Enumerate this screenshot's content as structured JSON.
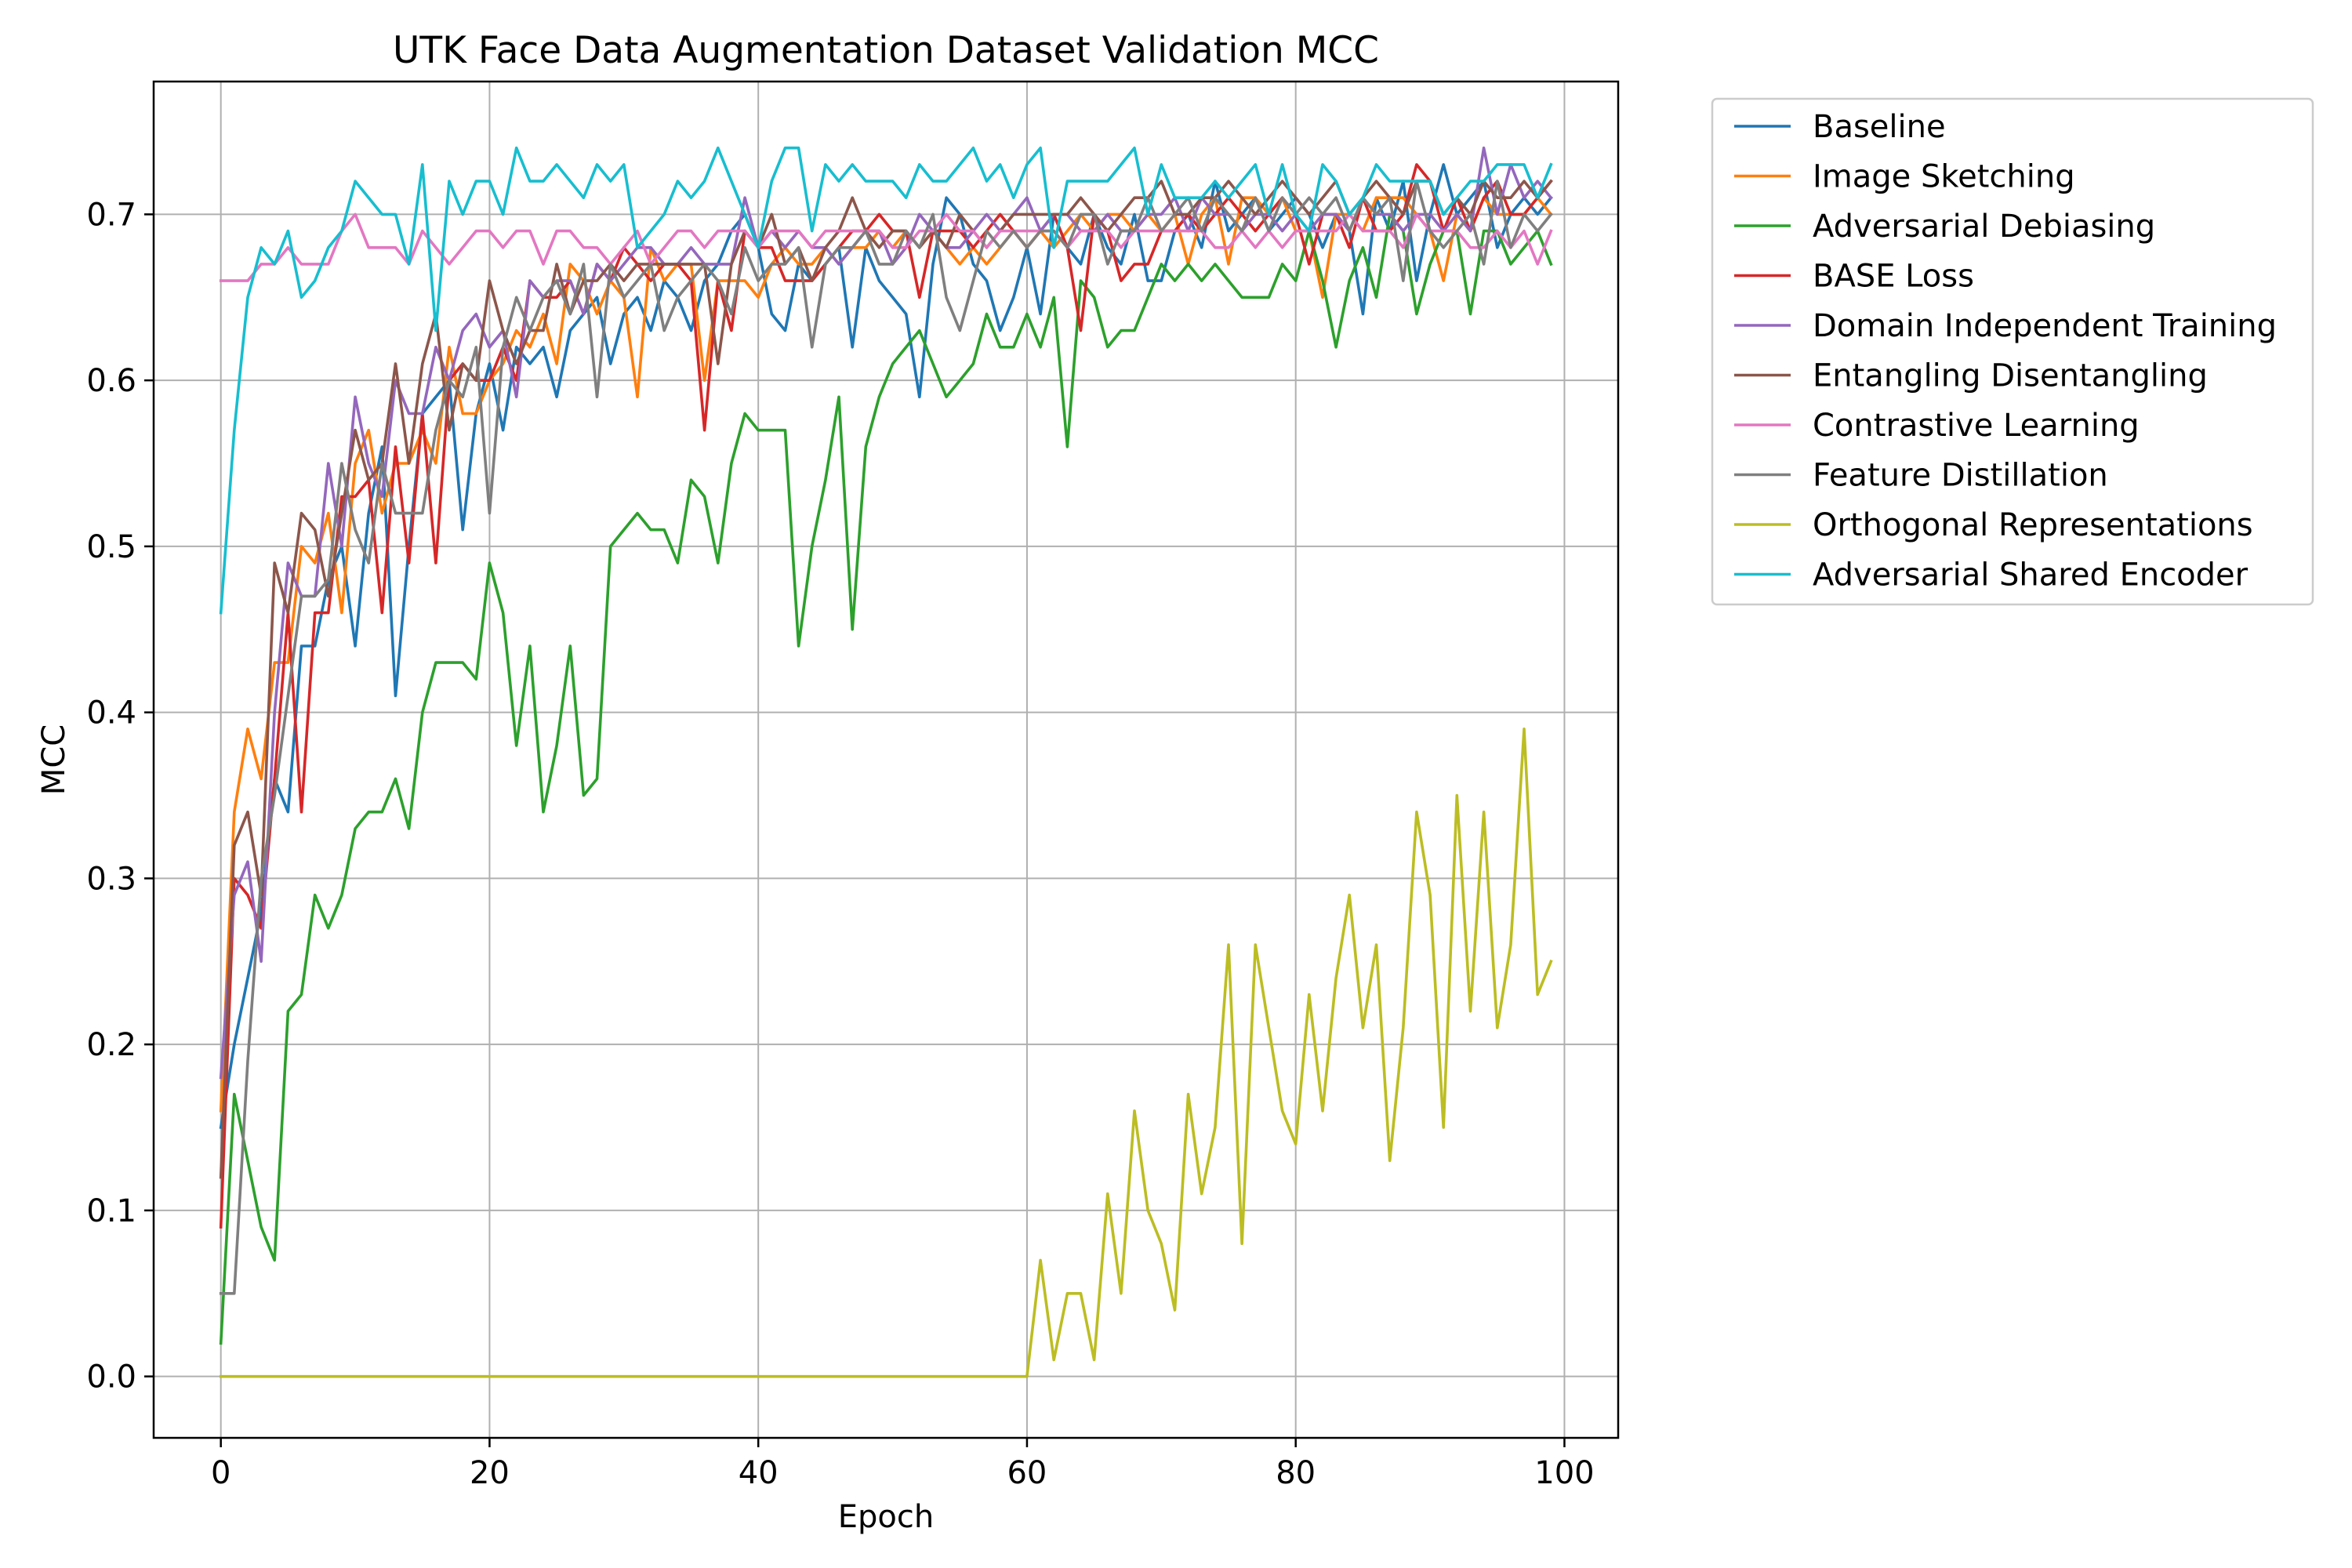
{
  "chart_data": {
    "type": "line",
    "title": "UTK Face Data Augmentation Dataset Validation MCC",
    "xlabel": "Epoch",
    "ylabel": "MCC",
    "xlim": [
      -5,
      104
    ],
    "ylim": [
      -0.037,
      0.78
    ],
    "xticks": [
      0,
      20,
      40,
      60,
      80,
      100
    ],
    "yticks": [
      0.0,
      0.1,
      0.2,
      0.3,
      0.4,
      0.5,
      0.6,
      0.7
    ],
    "ytick_labels": [
      "0.0",
      "0.1",
      "0.2",
      "0.3",
      "0.4",
      "0.5",
      "0.6",
      "0.7"
    ],
    "grid": true,
    "legend_position": "outside-upper-right",
    "epochs_start": 0,
    "epochs_end": 99,
    "series": [
      {
        "name": "Baseline",
        "color": "#1f77b4",
        "values": [
          0.15,
          0.2,
          0.24,
          0.28,
          0.36,
          0.34,
          0.44,
          0.44,
          0.48,
          0.5,
          0.44,
          0.52,
          0.56,
          0.41,
          0.5,
          0.58,
          0.59,
          0.6,
          0.51,
          0.58,
          0.61,
          0.57,
          0.62,
          0.61,
          0.62,
          0.59,
          0.63,
          0.64,
          0.65,
          0.61,
          0.64,
          0.65,
          0.63,
          0.66,
          0.65,
          0.63,
          0.66,
          0.67,
          0.69,
          0.7,
          0.68,
          0.64,
          0.63,
          0.67,
          0.66,
          0.67,
          0.68,
          0.62,
          0.68,
          0.66,
          0.65,
          0.64,
          0.59,
          0.67,
          0.71,
          0.7,
          0.67,
          0.66,
          0.63,
          0.65,
          0.68,
          0.64,
          0.7,
          0.68,
          0.67,
          0.7,
          0.68,
          0.67,
          0.7,
          0.66,
          0.66,
          0.69,
          0.7,
          0.68,
          0.72,
          0.69,
          0.7,
          0.71,
          0.69,
          0.7,
          0.71,
          0.7,
          0.68,
          0.7,
          0.69,
          0.64,
          0.71,
          0.69,
          0.72,
          0.66,
          0.7,
          0.73,
          0.7,
          0.71,
          0.72,
          0.68,
          0.7,
          0.71,
          0.7,
          0.71
        ]
      },
      {
        "name": "Image Sketching",
        "color": "#ff7f0e",
        "values": [
          0.16,
          0.34,
          0.39,
          0.36,
          0.43,
          0.43,
          0.5,
          0.49,
          0.52,
          0.46,
          0.55,
          0.57,
          0.52,
          0.55,
          0.55,
          0.57,
          0.55,
          0.62,
          0.58,
          0.58,
          0.6,
          0.61,
          0.63,
          0.62,
          0.64,
          0.61,
          0.67,
          0.66,
          0.64,
          0.66,
          0.65,
          0.59,
          0.68,
          0.66,
          0.67,
          0.67,
          0.6,
          0.66,
          0.66,
          0.66,
          0.65,
          0.67,
          0.68,
          0.67,
          0.67,
          0.68,
          0.67,
          0.68,
          0.68,
          0.69,
          0.68,
          0.69,
          0.68,
          0.69,
          0.68,
          0.67,
          0.68,
          0.67,
          0.68,
          0.69,
          0.68,
          0.69,
          0.68,
          0.69,
          0.7,
          0.69,
          0.7,
          0.7,
          0.69,
          0.7,
          0.69,
          0.7,
          0.67,
          0.7,
          0.71,
          0.67,
          0.71,
          0.71,
          0.7,
          0.71,
          0.69,
          0.69,
          0.65,
          0.7,
          0.7,
          0.69,
          0.71,
          0.71,
          0.71,
          0.7,
          0.69,
          0.66,
          0.7,
          0.69,
          0.71,
          0.7,
          0.7,
          0.7,
          0.71,
          0.7
        ]
      },
      {
        "name": "Adversarial Debiasing",
        "color": "#2ca02c",
        "values": [
          0.02,
          0.17,
          0.13,
          0.09,
          0.07,
          0.22,
          0.23,
          0.29,
          0.27,
          0.29,
          0.33,
          0.34,
          0.34,
          0.36,
          0.33,
          0.4,
          0.43,
          0.43,
          0.43,
          0.42,
          0.49,
          0.46,
          0.38,
          0.44,
          0.34,
          0.38,
          0.44,
          0.35,
          0.36,
          0.5,
          0.51,
          0.52,
          0.51,
          0.51,
          0.49,
          0.54,
          0.53,
          0.49,
          0.55,
          0.58,
          0.57,
          0.57,
          0.57,
          0.44,
          0.5,
          0.54,
          0.59,
          0.45,
          0.56,
          0.59,
          0.61,
          0.62,
          0.63,
          0.61,
          0.59,
          0.6,
          0.61,
          0.64,
          0.62,
          0.62,
          0.64,
          0.62,
          0.65,
          0.56,
          0.66,
          0.65,
          0.62,
          0.63,
          0.63,
          0.65,
          0.67,
          0.66,
          0.67,
          0.66,
          0.67,
          0.66,
          0.65,
          0.65,
          0.65,
          0.67,
          0.66,
          0.69,
          0.66,
          0.62,
          0.66,
          0.68,
          0.65,
          0.7,
          0.69,
          0.64,
          0.67,
          0.69,
          0.69,
          0.64,
          0.69,
          0.69,
          0.67,
          0.68,
          0.69,
          0.67
        ]
      },
      {
        "name": "BASE Loss",
        "color": "#d62728",
        "values": [
          0.09,
          0.3,
          0.29,
          0.27,
          0.36,
          0.46,
          0.34,
          0.46,
          0.46,
          0.53,
          0.53,
          0.54,
          0.46,
          0.56,
          0.49,
          0.58,
          0.49,
          0.6,
          0.61,
          0.6,
          0.6,
          0.62,
          0.6,
          0.66,
          0.65,
          0.65,
          0.66,
          0.64,
          0.67,
          0.66,
          0.68,
          0.67,
          0.66,
          0.67,
          0.67,
          0.66,
          0.57,
          0.66,
          0.63,
          0.69,
          0.68,
          0.68,
          0.66,
          0.66,
          0.66,
          0.67,
          0.68,
          0.69,
          0.69,
          0.7,
          0.69,
          0.69,
          0.65,
          0.69,
          0.69,
          0.69,
          0.68,
          0.69,
          0.7,
          0.69,
          0.68,
          0.69,
          0.7,
          0.68,
          0.63,
          0.7,
          0.69,
          0.66,
          0.67,
          0.67,
          0.69,
          0.69,
          0.7,
          0.69,
          0.7,
          0.71,
          0.7,
          0.69,
          0.7,
          0.71,
          0.7,
          0.67,
          0.7,
          0.7,
          0.68,
          0.71,
          0.69,
          0.69,
          0.7,
          0.73,
          0.72,
          0.69,
          0.71,
          0.69,
          0.71,
          0.72,
          0.7,
          0.7,
          0.71,
          0.72
        ]
      },
      {
        "name": "Domain Independent Training",
        "color": "#9467bd",
        "values": [
          0.18,
          0.29,
          0.31,
          0.25,
          0.4,
          0.49,
          0.47,
          0.47,
          0.55,
          0.5,
          0.59,
          0.55,
          0.53,
          0.6,
          0.58,
          0.58,
          0.62,
          0.6,
          0.63,
          0.64,
          0.62,
          0.63,
          0.59,
          0.66,
          0.65,
          0.66,
          0.66,
          0.64,
          0.67,
          0.66,
          0.67,
          0.68,
          0.68,
          0.67,
          0.67,
          0.68,
          0.67,
          0.67,
          0.67,
          0.71,
          0.68,
          0.69,
          0.68,
          0.69,
          0.68,
          0.68,
          0.67,
          0.68,
          0.69,
          0.69,
          0.67,
          0.68,
          0.7,
          0.69,
          0.68,
          0.68,
          0.69,
          0.7,
          0.69,
          0.7,
          0.71,
          0.69,
          0.7,
          0.7,
          0.69,
          0.69,
          0.7,
          0.69,
          0.69,
          0.7,
          0.7,
          0.71,
          0.69,
          0.71,
          0.7,
          0.7,
          0.69,
          0.7,
          0.7,
          0.69,
          0.7,
          0.69,
          0.7,
          0.7,
          0.69,
          0.71,
          0.7,
          0.7,
          0.69,
          0.7,
          0.7,
          0.69,
          0.7,
          0.69,
          0.74,
          0.7,
          0.73,
          0.71,
          0.72,
          0.71
        ]
      },
      {
        "name": "Entangling Disentangling",
        "color": "#8c564b",
        "values": [
          0.12,
          0.32,
          0.34,
          0.29,
          0.49,
          0.46,
          0.52,
          0.51,
          0.47,
          0.52,
          0.57,
          0.54,
          0.55,
          0.61,
          0.55,
          0.61,
          0.64,
          0.57,
          0.61,
          0.6,
          0.66,
          0.63,
          0.61,
          0.63,
          0.63,
          0.67,
          0.64,
          0.66,
          0.66,
          0.67,
          0.66,
          0.67,
          0.67,
          0.67,
          0.67,
          0.67,
          0.67,
          0.61,
          0.67,
          0.69,
          0.68,
          0.7,
          0.67,
          0.68,
          0.66,
          0.68,
          0.69,
          0.71,
          0.69,
          0.68,
          0.69,
          0.69,
          0.68,
          0.69,
          0.68,
          0.7,
          0.69,
          0.68,
          0.69,
          0.7,
          0.7,
          0.7,
          0.7,
          0.7,
          0.71,
          0.7,
          0.69,
          0.7,
          0.71,
          0.71,
          0.72,
          0.7,
          0.7,
          0.71,
          0.71,
          0.72,
          0.71,
          0.7,
          0.71,
          0.72,
          0.71,
          0.7,
          0.71,
          0.72,
          0.7,
          0.71,
          0.72,
          0.71,
          0.7,
          0.72,
          0.72,
          0.7,
          0.71,
          0.7,
          0.72,
          0.71,
          0.71,
          0.72,
          0.71,
          0.72
        ]
      },
      {
        "name": "Contrastive Learning",
        "color": "#e377c2",
        "values": [
          0.66,
          0.66,
          0.66,
          0.67,
          0.67,
          0.68,
          0.67,
          0.67,
          0.67,
          0.69,
          0.7,
          0.68,
          0.68,
          0.68,
          0.67,
          0.69,
          0.68,
          0.67,
          0.68,
          0.69,
          0.69,
          0.68,
          0.69,
          0.69,
          0.67,
          0.69,
          0.69,
          0.68,
          0.68,
          0.67,
          0.68,
          0.69,
          0.67,
          0.68,
          0.69,
          0.69,
          0.68,
          0.69,
          0.69,
          0.69,
          0.68,
          0.69,
          0.69,
          0.69,
          0.68,
          0.69,
          0.69,
          0.69,
          0.69,
          0.69,
          0.68,
          0.68,
          0.69,
          0.69,
          0.7,
          0.69,
          0.69,
          0.68,
          0.69,
          0.69,
          0.69,
          0.69,
          0.69,
          0.68,
          0.69,
          0.69,
          0.69,
          0.68,
          0.69,
          0.69,
          0.69,
          0.69,
          0.69,
          0.69,
          0.68,
          0.68,
          0.69,
          0.68,
          0.69,
          0.68,
          0.69,
          0.69,
          0.69,
          0.69,
          0.7,
          0.69,
          0.69,
          0.69,
          0.68,
          0.7,
          0.69,
          0.69,
          0.69,
          0.68,
          0.68,
          0.69,
          0.68,
          0.69,
          0.67,
          0.69
        ]
      },
      {
        "name": "Feature Distillation",
        "color": "#7f7f7f",
        "values": [
          0.05,
          0.05,
          0.19,
          0.3,
          0.35,
          0.41,
          0.47,
          0.47,
          0.48,
          0.55,
          0.51,
          0.49,
          0.55,
          0.52,
          0.52,
          0.52,
          0.57,
          0.6,
          0.59,
          0.62,
          0.52,
          0.62,
          0.65,
          0.63,
          0.65,
          0.66,
          0.64,
          0.67,
          0.59,
          0.67,
          0.65,
          0.66,
          0.67,
          0.63,
          0.65,
          0.66,
          0.67,
          0.66,
          0.64,
          0.68,
          0.66,
          0.67,
          0.67,
          0.68,
          0.62,
          0.67,
          0.68,
          0.68,
          0.69,
          0.67,
          0.67,
          0.69,
          0.68,
          0.7,
          0.65,
          0.63,
          0.66,
          0.69,
          0.68,
          0.69,
          0.68,
          0.69,
          0.69,
          0.68,
          0.7,
          0.7,
          0.67,
          0.69,
          0.69,
          0.71,
          0.69,
          0.7,
          0.71,
          0.69,
          0.71,
          0.7,
          0.69,
          0.71,
          0.69,
          0.71,
          0.7,
          0.71,
          0.7,
          0.71,
          0.69,
          0.71,
          0.7,
          0.71,
          0.66,
          0.72,
          0.69,
          0.68,
          0.69,
          0.7,
          0.67,
          0.72,
          0.68,
          0.7,
          0.69,
          0.7
        ]
      },
      {
        "name": "Orthogonal Representations",
        "color": "#bcbd22",
        "values": [
          0.0,
          0.0,
          0.0,
          0.0,
          0.0,
          0.0,
          0.0,
          0.0,
          0.0,
          0.0,
          0.0,
          0.0,
          0.0,
          0.0,
          0.0,
          0.0,
          0.0,
          0.0,
          0.0,
          0.0,
          0.0,
          0.0,
          0.0,
          0.0,
          0.0,
          0.0,
          0.0,
          0.0,
          0.0,
          0.0,
          0.0,
          0.0,
          0.0,
          0.0,
          0.0,
          0.0,
          0.0,
          0.0,
          0.0,
          0.0,
          0.0,
          0.0,
          0.0,
          0.0,
          0.0,
          0.0,
          0.0,
          0.0,
          0.0,
          0.0,
          0.0,
          0.0,
          0.0,
          0.0,
          0.0,
          0.0,
          0.0,
          0.0,
          0.0,
          0.0,
          0.0,
          0.07,
          0.01,
          0.05,
          0.05,
          0.01,
          0.11,
          0.05,
          0.16,
          0.1,
          0.08,
          0.04,
          0.17,
          0.11,
          0.15,
          0.26,
          0.08,
          0.26,
          0.21,
          0.16,
          0.14,
          0.23,
          0.16,
          0.24,
          0.29,
          0.21,
          0.26,
          0.13,
          0.21,
          0.34,
          0.29,
          0.15,
          0.35,
          0.22,
          0.34,
          0.21,
          0.26,
          0.39,
          0.23,
          0.25
        ]
      },
      {
        "name": "Adversarial Shared Encoder",
        "color": "#17becf",
        "values": [
          0.46,
          0.57,
          0.65,
          0.68,
          0.67,
          0.69,
          0.65,
          0.66,
          0.68,
          0.69,
          0.72,
          0.71,
          0.7,
          0.7,
          0.67,
          0.73,
          0.63,
          0.72,
          0.7,
          0.72,
          0.72,
          0.7,
          0.74,
          0.72,
          0.72,
          0.73,
          0.72,
          0.71,
          0.73,
          0.72,
          0.73,
          0.68,
          0.69,
          0.7,
          0.72,
          0.71,
          0.72,
          0.74,
          0.72,
          0.7,
          0.68,
          0.72,
          0.74,
          0.74,
          0.69,
          0.73,
          0.72,
          0.73,
          0.72,
          0.72,
          0.72,
          0.71,
          0.73,
          0.72,
          0.72,
          0.73,
          0.74,
          0.72,
          0.73,
          0.71,
          0.73,
          0.74,
          0.68,
          0.72,
          0.72,
          0.72,
          0.72,
          0.73,
          0.74,
          0.7,
          0.73,
          0.71,
          0.71,
          0.71,
          0.72,
          0.71,
          0.72,
          0.73,
          0.7,
          0.73,
          0.7,
          0.69,
          0.73,
          0.72,
          0.7,
          0.71,
          0.73,
          0.72,
          0.72,
          0.72,
          0.72,
          0.7,
          0.71,
          0.72,
          0.72,
          0.73,
          0.73,
          0.73,
          0.71,
          0.73
        ]
      }
    ]
  }
}
